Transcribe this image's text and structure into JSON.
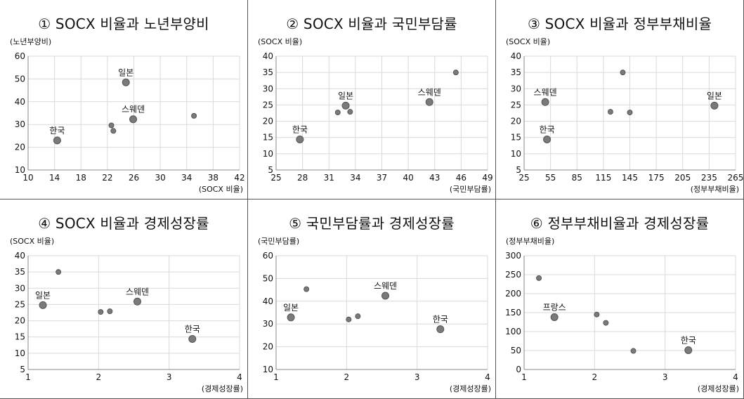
{
  "chart_data": [
    {
      "type": "scatter",
      "title": "① SOCX 비율과 노년부양비",
      "xlabel": "(SOCX 비율)",
      "ylabel": "(노년부양비)",
      "xlim": [
        10,
        42
      ],
      "ylim": [
        10,
        60
      ],
      "xticks": [
        10,
        14,
        18,
        22,
        26,
        30,
        34,
        38,
        42
      ],
      "yticks": [
        10,
        20,
        30,
        40,
        50,
        60
      ],
      "grid": true,
      "points": [
        {
          "x": 14.4,
          "y": 23,
          "label": "한국",
          "highlight": true
        },
        {
          "x": 24.8,
          "y": 48.5,
          "label": "일본",
          "highlight": true
        },
        {
          "x": 25.9,
          "y": 32.3,
          "label": "스웨덴",
          "highlight": true
        },
        {
          "x": 22.6,
          "y": 29.6
        },
        {
          "x": 22.9,
          "y": 27.2
        },
        {
          "x": 35.1,
          "y": 33.8
        }
      ]
    },
    {
      "type": "scatter",
      "title": "② SOCX 비율과 국민부담률",
      "xlabel": "(국민부담률)",
      "ylabel": "(SOCX 비율)",
      "xlim": [
        25,
        49
      ],
      "ylim": [
        5,
        40
      ],
      "xticks": [
        25,
        28,
        31,
        34,
        37,
        40,
        43,
        46,
        49
      ],
      "yticks": [
        5,
        10,
        15,
        20,
        25,
        30,
        35,
        40
      ],
      "grid": true,
      "points": [
        {
          "x": 27.7,
          "y": 14.4,
          "label": "한국",
          "highlight": true
        },
        {
          "x": 32.9,
          "y": 24.8,
          "label": "일본",
          "highlight": true
        },
        {
          "x": 42.4,
          "y": 25.9,
          "label": "스웨덴",
          "highlight": true
        },
        {
          "x": 32.0,
          "y": 22.7
        },
        {
          "x": 33.4,
          "y": 22.9
        },
        {
          "x": 45.4,
          "y": 35.0
        }
      ]
    },
    {
      "type": "scatter",
      "title": "③ SOCX 비율과 정부부채비율",
      "xlabel": "(정부부채비율)",
      "ylabel": "(SOCX 비율)",
      "xlim": [
        25,
        265
      ],
      "ylim": [
        5,
        40
      ],
      "xticks": [
        25,
        55,
        85,
        115,
        145,
        175,
        205,
        235,
        265
      ],
      "yticks": [
        5,
        10,
        15,
        20,
        25,
        30,
        35,
        40
      ],
      "grid": true,
      "points": [
        {
          "x": 51,
          "y": 14.4,
          "label": "한국",
          "highlight": true
        },
        {
          "x": 49,
          "y": 25.9,
          "label": "스웨덴",
          "highlight": true
        },
        {
          "x": 241,
          "y": 24.8,
          "label": "일본",
          "highlight": true
        },
        {
          "x": 123,
          "y": 22.9
        },
        {
          "x": 145,
          "y": 22.7
        },
        {
          "x": 137,
          "y": 35.0
        }
      ]
    },
    {
      "type": "scatter",
      "title": "④ SOCX 비율과 경제성장률",
      "xlabel": "(경제성장률)",
      "ylabel": "(SOCX 비율)",
      "xlim": [
        1,
        4
      ],
      "ylim": [
        5,
        40
      ],
      "xticks": [
        1,
        2,
        3,
        4
      ],
      "yticks": [
        5,
        10,
        15,
        20,
        25,
        30,
        35,
        40
      ],
      "grid": true,
      "points": [
        {
          "x": 1.21,
          "y": 24.8,
          "label": "일본",
          "highlight": true
        },
        {
          "x": 2.55,
          "y": 25.9,
          "label": "스웨덴",
          "highlight": true
        },
        {
          "x": 3.33,
          "y": 14.4,
          "label": "한국",
          "highlight": true
        },
        {
          "x": 1.43,
          "y": 35.0
        },
        {
          "x": 2.03,
          "y": 22.7
        },
        {
          "x": 2.16,
          "y": 22.9
        }
      ]
    },
    {
      "type": "scatter",
      "title": "⑤ 국민부담률과 경제성장률",
      "xlabel": "(경제성장률)",
      "ylabel": "(국민부담률)",
      "xlim": [
        1,
        4
      ],
      "ylim": [
        10,
        60
      ],
      "xticks": [
        1,
        2,
        3,
        4
      ],
      "yticks": [
        10,
        20,
        30,
        40,
        50,
        60
      ],
      "grid": true,
      "points": [
        {
          "x": 1.21,
          "y": 32.9,
          "label": "일본",
          "highlight": true
        },
        {
          "x": 2.55,
          "y": 42.4,
          "label": "스웨덴",
          "highlight": true
        },
        {
          "x": 3.33,
          "y": 27.7,
          "label": "한국",
          "highlight": true
        },
        {
          "x": 1.43,
          "y": 45.3
        },
        {
          "x": 2.03,
          "y": 32.0
        },
        {
          "x": 2.16,
          "y": 33.4
        }
      ]
    },
    {
      "type": "scatter",
      "title": "⑥ 정부부채비율과 경제성장률",
      "xlabel": "(경제성장률)",
      "ylabel": "(정부부채비율)",
      "xlim": [
        1,
        4
      ],
      "ylim": [
        0,
        300
      ],
      "xticks": [
        1,
        2,
        3,
        4
      ],
      "yticks": [
        0,
        50,
        100,
        150,
        200,
        250,
        300
      ],
      "grid": true,
      "points": [
        {
          "x": 1.43,
          "y": 138,
          "label": "프랑스",
          "highlight": true
        },
        {
          "x": 3.33,
          "y": 51,
          "label": "한국",
          "highlight": true
        },
        {
          "x": 1.21,
          "y": 241
        },
        {
          "x": 2.03,
          "y": 145
        },
        {
          "x": 2.16,
          "y": 123
        },
        {
          "x": 2.55,
          "y": 49
        }
      ]
    }
  ]
}
